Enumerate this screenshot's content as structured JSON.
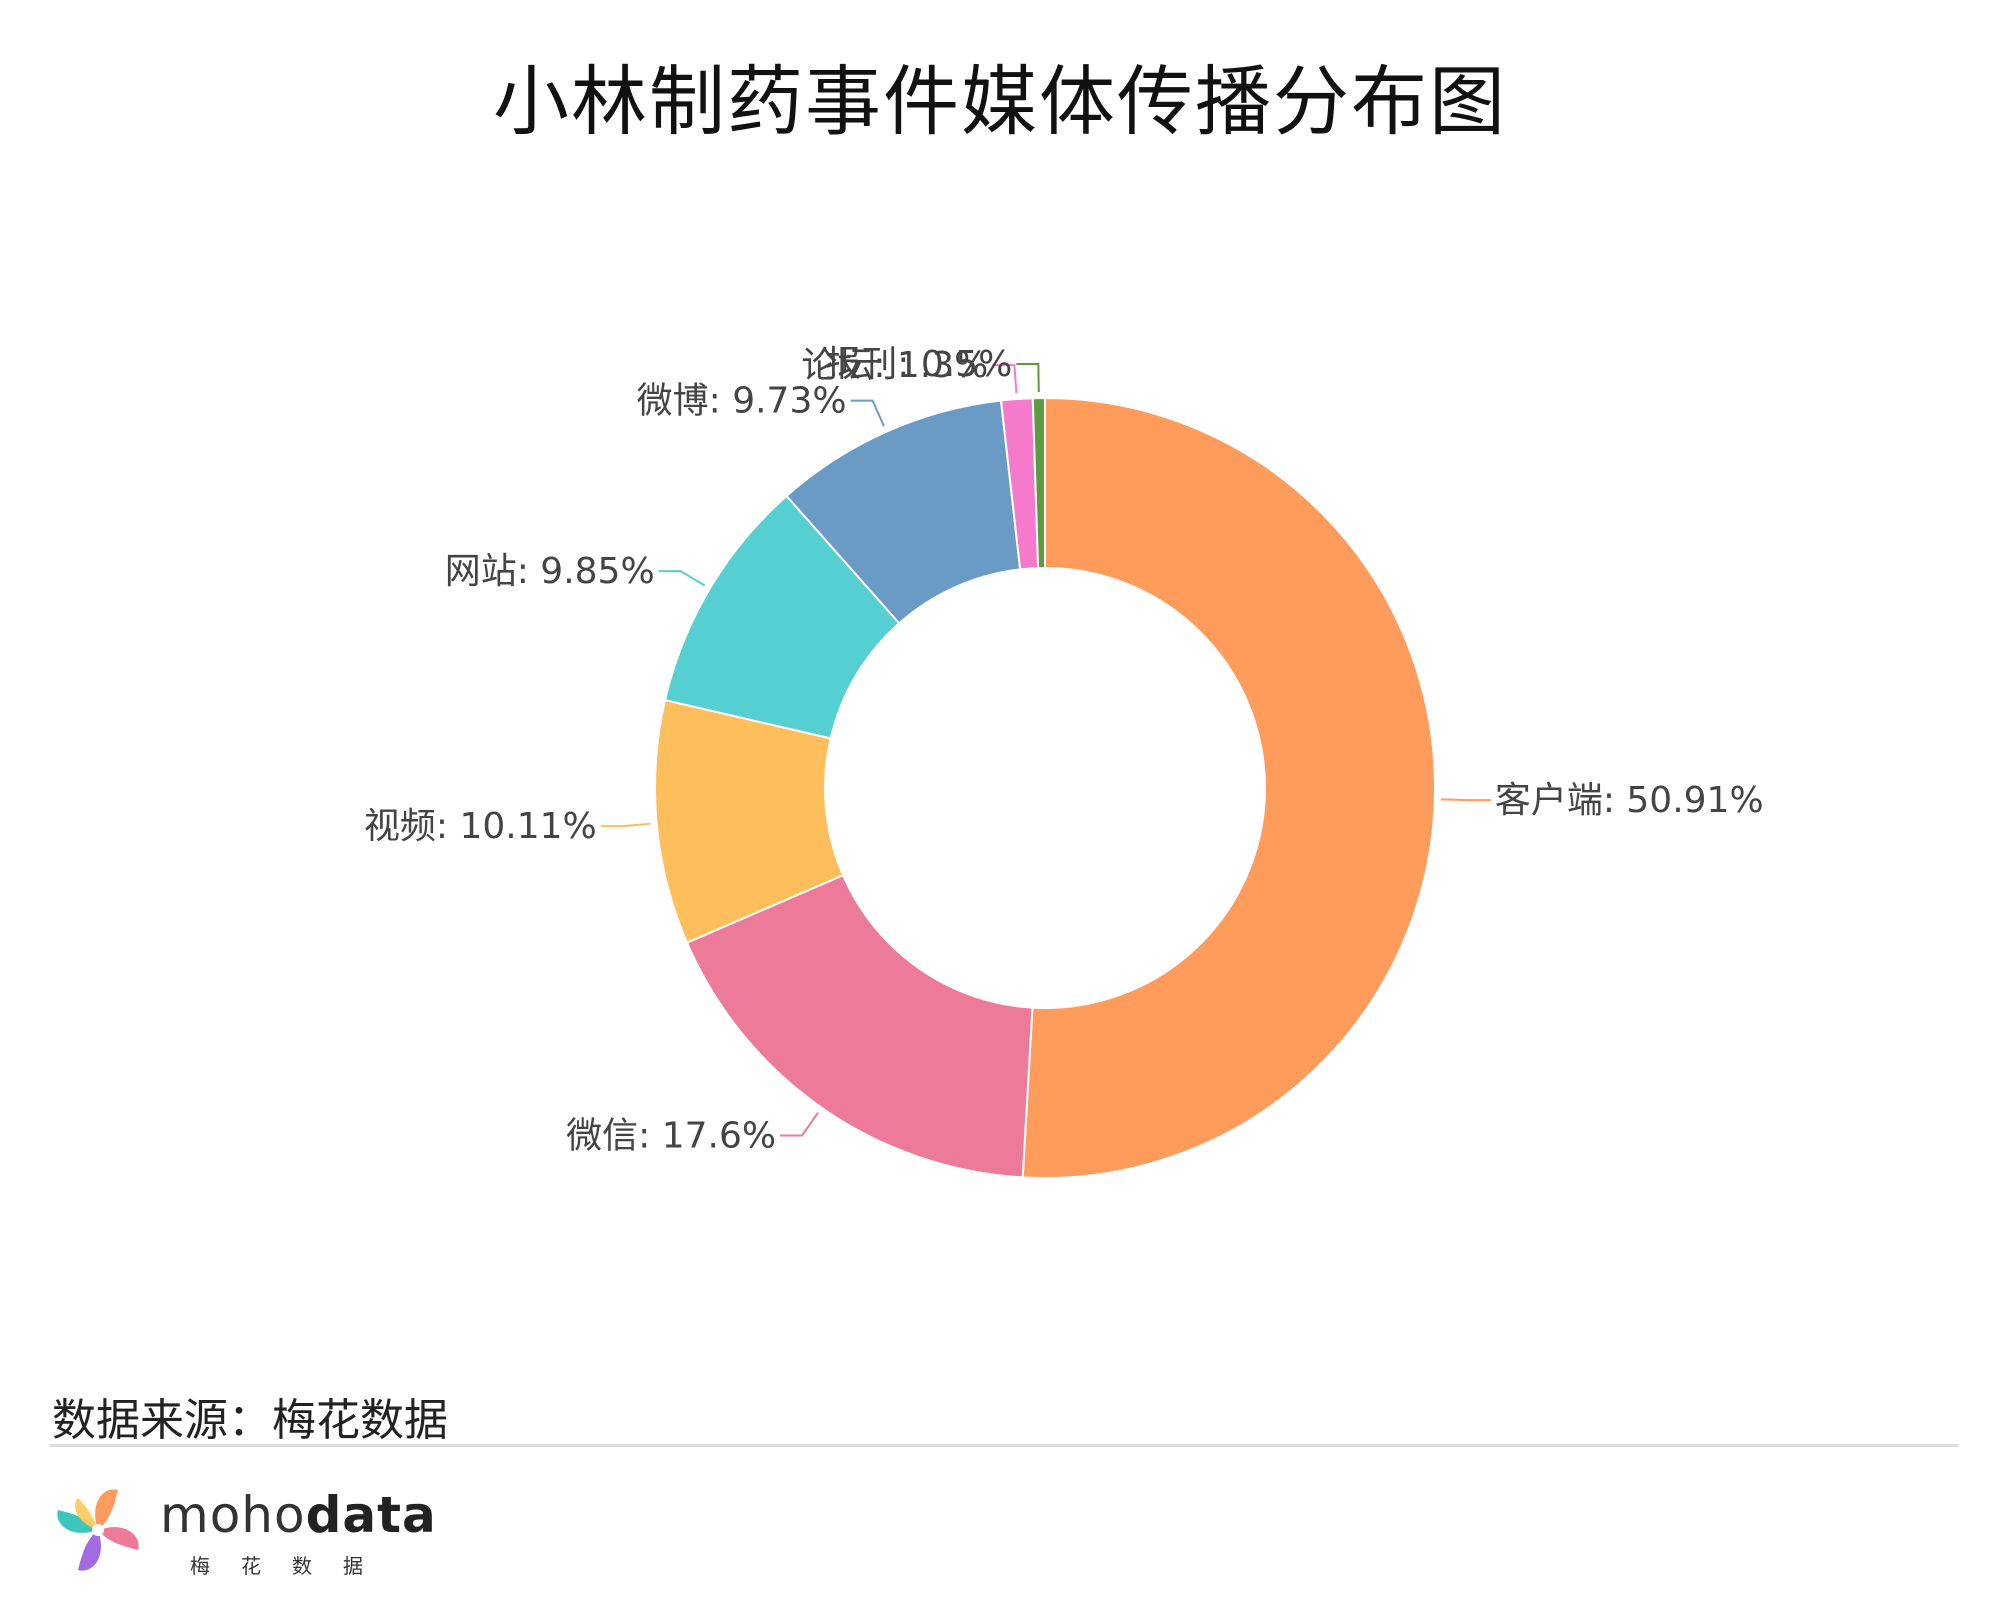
{
  "title": "小林制药事件媒体传播分布图",
  "source_label": "数据来源：梅花数据",
  "logo": {
    "word_light": "moho",
    "word_bold": "data",
    "subtitle": "梅花数据"
  },
  "chart_data": {
    "type": "pie",
    "donut": true,
    "title": "小林制药事件媒体传播分布图",
    "slices": [
      {
        "label": "客户端: 50.91%",
        "value": 50.91,
        "color": "#FF9C5B"
      },
      {
        "label": "微信: 17.6%",
        "value": 17.6,
        "color": "#EE7A99"
      },
      {
        "label": "视频: 10.11%",
        "value": 10.11,
        "color": "#FFBE5C"
      },
      {
        "label": "网站: 9.85%",
        "value": 9.85,
        "color": "#56CFD3"
      },
      {
        "label": "微博: 9.73%",
        "value": 9.73,
        "color": "#6A9BC5"
      },
      {
        "label": "论坛: 1.3%",
        "value": 1.3,
        "color": "#F67ACB"
      },
      {
        "label": "报刊: 0.5%",
        "value": 0.5,
        "color": "#5E9A3E"
      }
    ]
  }
}
